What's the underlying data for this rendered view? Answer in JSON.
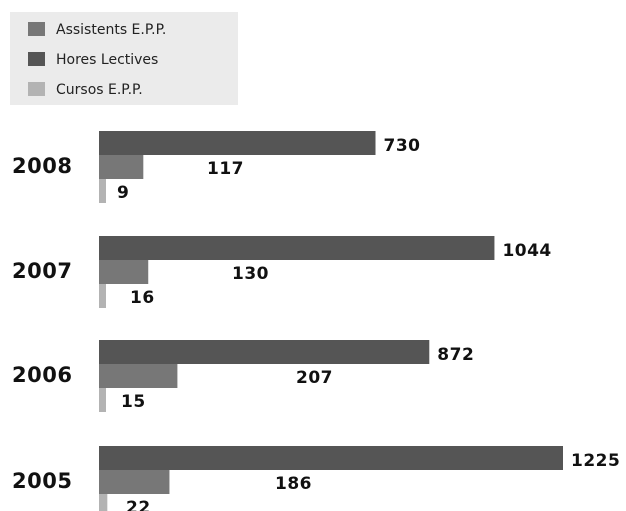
{
  "chart_data": {
    "type": "bar",
    "orientation": "horizontal",
    "categories": [
      "2008",
      "2007",
      "2006",
      "2005"
    ],
    "series": [
      {
        "name": "Hores Lectives",
        "color": "#555555",
        "values": [
          730,
          1044,
          872,
          1225
        ]
      },
      {
        "name": "Assistents E.P.P.",
        "color": "#777777",
        "values": [
          117,
          130,
          207,
          186
        ]
      },
      {
        "name": "Cursos E.P.P.",
        "color": "#b3b3b3",
        "values": [
          9,
          16,
          15,
          22
        ]
      }
    ],
    "legend": {
      "position": "top-left",
      "background": "#ebebeb",
      "items": [
        {
          "label": "Assistents E.P.P.",
          "color": "#777777"
        },
        {
          "label": "Hores Lectives",
          "color": "#555555"
        },
        {
          "label": "Cursos E.P.P.",
          "color": "#b3b3b3"
        }
      ]
    },
    "grid": false,
    "axes_visible": false
  }
}
